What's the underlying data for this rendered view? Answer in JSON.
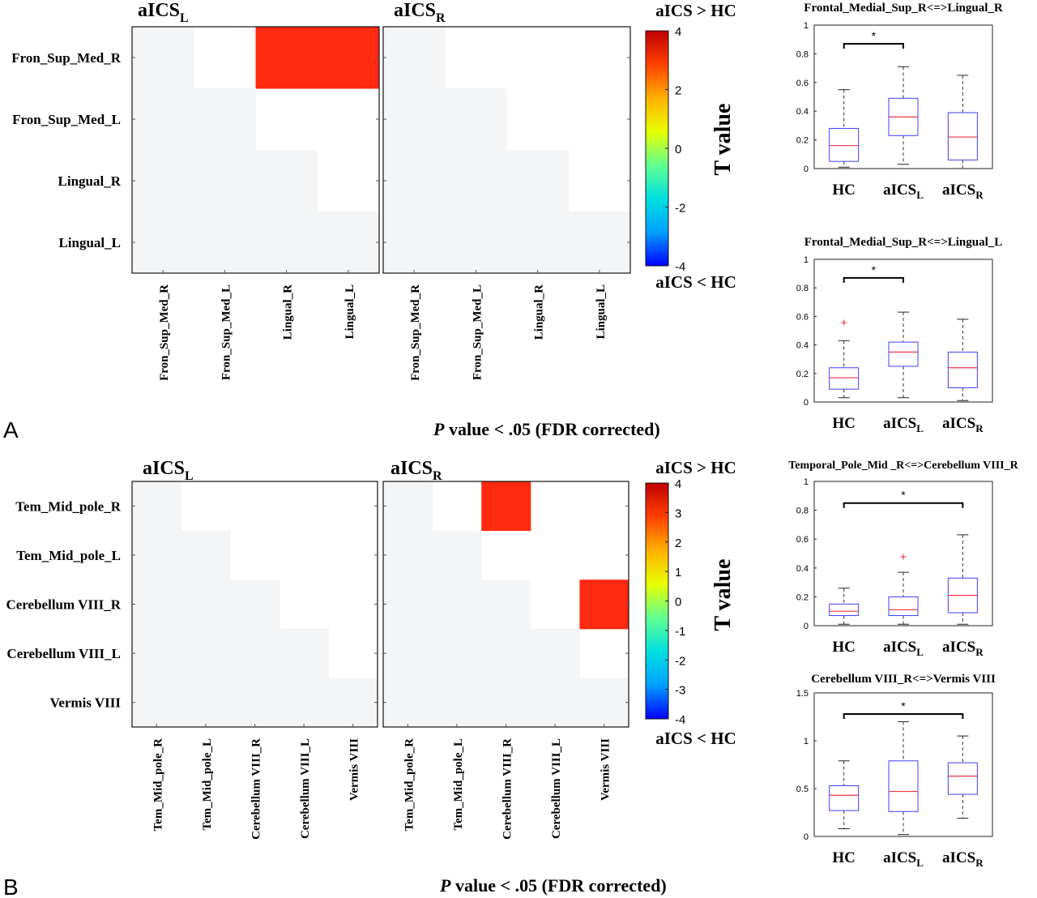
{
  "panels": {
    "A": {
      "label": "A",
      "footnote_italic": "P",
      "footnote_rest": " value < .05 (FDR corrected)"
    },
    "B": {
      "label": "B",
      "footnote_italic": "P",
      "footnote_rest": " value < .05 (FDR corrected)"
    }
  },
  "colorbar": {
    "label": "T value",
    "top_text": "aICS > HC",
    "bottom_text": "aICS < HC",
    "colors": [
      "#0000ff",
      "#00a0ff",
      "#00e0e0",
      "#60ff90",
      "#e8ff00",
      "#ffb000",
      "#ff4000",
      "#c00000"
    ],
    "ticks_A": [
      "4",
      "2",
      "0",
      "-2",
      "-4"
    ],
    "ticks_B": [
      "4",
      "3",
      "2",
      "1",
      "0",
      "-1",
      "-2",
      "-3",
      "-4"
    ]
  },
  "colors": {
    "sig_red": "#ff2a10",
    "lower_tri": "#f3f5f6",
    "box_blue": "#3f3fff",
    "median_red": "#ee3344",
    "outlier_red": "#ee2233"
  },
  "chart_data": [
    {
      "type": "heatmap",
      "title": "aICS",
      "title_sub": "L",
      "rows": [
        "Fron_Sup_Med_R",
        "Fron_Sup_Med_L",
        "Lingual_R",
        "Lingual_L"
      ],
      "cols": [
        "Fron_Sup_Med_R",
        "Fron_Sup_Med_L",
        "Lingual_R",
        "Lingual_L"
      ],
      "significant_cells": [
        [
          0,
          2
        ],
        [
          0,
          3
        ]
      ]
    },
    {
      "type": "heatmap",
      "title": "aICS",
      "title_sub": "R",
      "rows": [
        "Fron_Sup_Med_R",
        "Fron_Sup_Med_L",
        "Lingual_R",
        "Lingual_L"
      ],
      "cols": [
        "Fron_Sup_Med_R",
        "Fron_Sup_Med_L",
        "Lingual_R",
        "Lingual_L"
      ],
      "significant_cells": []
    },
    {
      "type": "heatmap",
      "title": "aICS",
      "title_sub": "L",
      "rows": [
        "Tem_Mid_pole_R",
        "Tem_Mid_pole_L",
        "Cerebellum VIII_R",
        "Cerebellum VIII_L",
        "Vermis VIII"
      ],
      "cols": [
        "Tem_Mid_pole_R",
        "Tem_Mid_pole_L",
        "Cerebellum VIII_R",
        "Cerebellum VIII_L",
        "Vermis VIII"
      ],
      "significant_cells": []
    },
    {
      "type": "heatmap",
      "title": "aICS",
      "title_sub": "R",
      "rows": [
        "Tem_Mid_pole_R",
        "Tem_Mid_pole_L",
        "Cerebellum VIII_R",
        "Cerebellum VIII_L",
        "Vermis VIII"
      ],
      "cols": [
        "Tem_Mid_pole_R",
        "Tem_Mid_pole_L",
        "Cerebellum VIII_R",
        "Cerebellum VIII_L",
        "Vermis VIII"
      ],
      "significant_cells": [
        [
          0,
          2
        ],
        [
          2,
          4
        ]
      ]
    },
    {
      "type": "box",
      "title": "Frontal_Medial_Sup_R<=>Lingual_R",
      "ylim": [
        0,
        1
      ],
      "yticks": [
        "0",
        "0.2",
        "0.4",
        "0.6",
        "0.8",
        "1"
      ],
      "significance": {
        "from": 0,
        "to": 1,
        "y": 0.87,
        "label": "*"
      },
      "groups": [
        {
          "name": "HC",
          "sub": "",
          "min": 0.01,
          "q1": 0.05,
          "median": 0.16,
          "q3": 0.28,
          "max": 0.55,
          "outliers": []
        },
        {
          "name": "aICS",
          "sub": "L",
          "min": 0.03,
          "q1": 0.23,
          "median": 0.36,
          "q3": 0.49,
          "max": 0.71,
          "outliers": []
        },
        {
          "name": "aICS",
          "sub": "R",
          "min": 0.0,
          "q1": 0.06,
          "median": 0.22,
          "q3": 0.39,
          "max": 0.65,
          "outliers": []
        }
      ]
    },
    {
      "type": "box",
      "title": "Frontal_Medial_Sup_R<=>Lingual_L",
      "ylim": [
        0,
        1
      ],
      "yticks": [
        "0",
        "0.2",
        "0.4",
        "0.6",
        "0.8",
        "1"
      ],
      "significance": {
        "from": 0,
        "to": 1,
        "y": 0.87,
        "label": "*"
      },
      "groups": [
        {
          "name": "HC",
          "sub": "",
          "min": 0.03,
          "q1": 0.09,
          "median": 0.17,
          "q3": 0.24,
          "max": 0.43,
          "outliers": [
            0.56
          ]
        },
        {
          "name": "aICS",
          "sub": "L",
          "min": 0.03,
          "q1": 0.25,
          "median": 0.35,
          "q3": 0.42,
          "max": 0.63,
          "outliers": []
        },
        {
          "name": "aICS",
          "sub": "R",
          "min": 0.01,
          "q1": 0.1,
          "median": 0.24,
          "q3": 0.35,
          "max": 0.58,
          "outliers": []
        }
      ]
    },
    {
      "type": "box",
      "title": "Temporal_Pole_Mid _R<=>Cerebellum VIII_R",
      "ylim": [
        0,
        1
      ],
      "yticks": [
        "0",
        "0.2",
        "0.4",
        "0.6",
        "0.8",
        "1"
      ],
      "significance": {
        "from": 0,
        "to": 2,
        "y": 0.85,
        "label": "*"
      },
      "groups": [
        {
          "name": "HC",
          "sub": "",
          "min": 0.01,
          "q1": 0.07,
          "median": 0.1,
          "q3": 0.15,
          "max": 0.26,
          "outliers": []
        },
        {
          "name": "aICS",
          "sub": "L",
          "min": 0.01,
          "q1": 0.07,
          "median": 0.11,
          "q3": 0.2,
          "max": 0.37,
          "outliers": [
            0.48
          ]
        },
        {
          "name": "aICS",
          "sub": "R",
          "min": 0.01,
          "q1": 0.09,
          "median": 0.21,
          "q3": 0.33,
          "max": 0.63,
          "outliers": []
        }
      ]
    },
    {
      "type": "box",
      "title": "Cerebellum VIII_R<=>Vermis VIII",
      "ylim": [
        0,
        1.5
      ],
      "yticks": [
        "0",
        "0.5",
        "1",
        "1.5"
      ],
      "significance": {
        "from": 0,
        "to": 2,
        "y": 1.28,
        "label": "*"
      },
      "groups": [
        {
          "name": "HC",
          "sub": "",
          "min": 0.08,
          "q1": 0.27,
          "median": 0.43,
          "q3": 0.53,
          "max": 0.79,
          "outliers": []
        },
        {
          "name": "aICS",
          "sub": "L",
          "min": 0.02,
          "q1": 0.26,
          "median": 0.47,
          "q3": 0.79,
          "max": 1.2,
          "outliers": []
        },
        {
          "name": "aICS",
          "sub": "R",
          "min": 0.19,
          "q1": 0.44,
          "median": 0.63,
          "q3": 0.77,
          "max": 1.05,
          "outliers": []
        }
      ]
    }
  ]
}
